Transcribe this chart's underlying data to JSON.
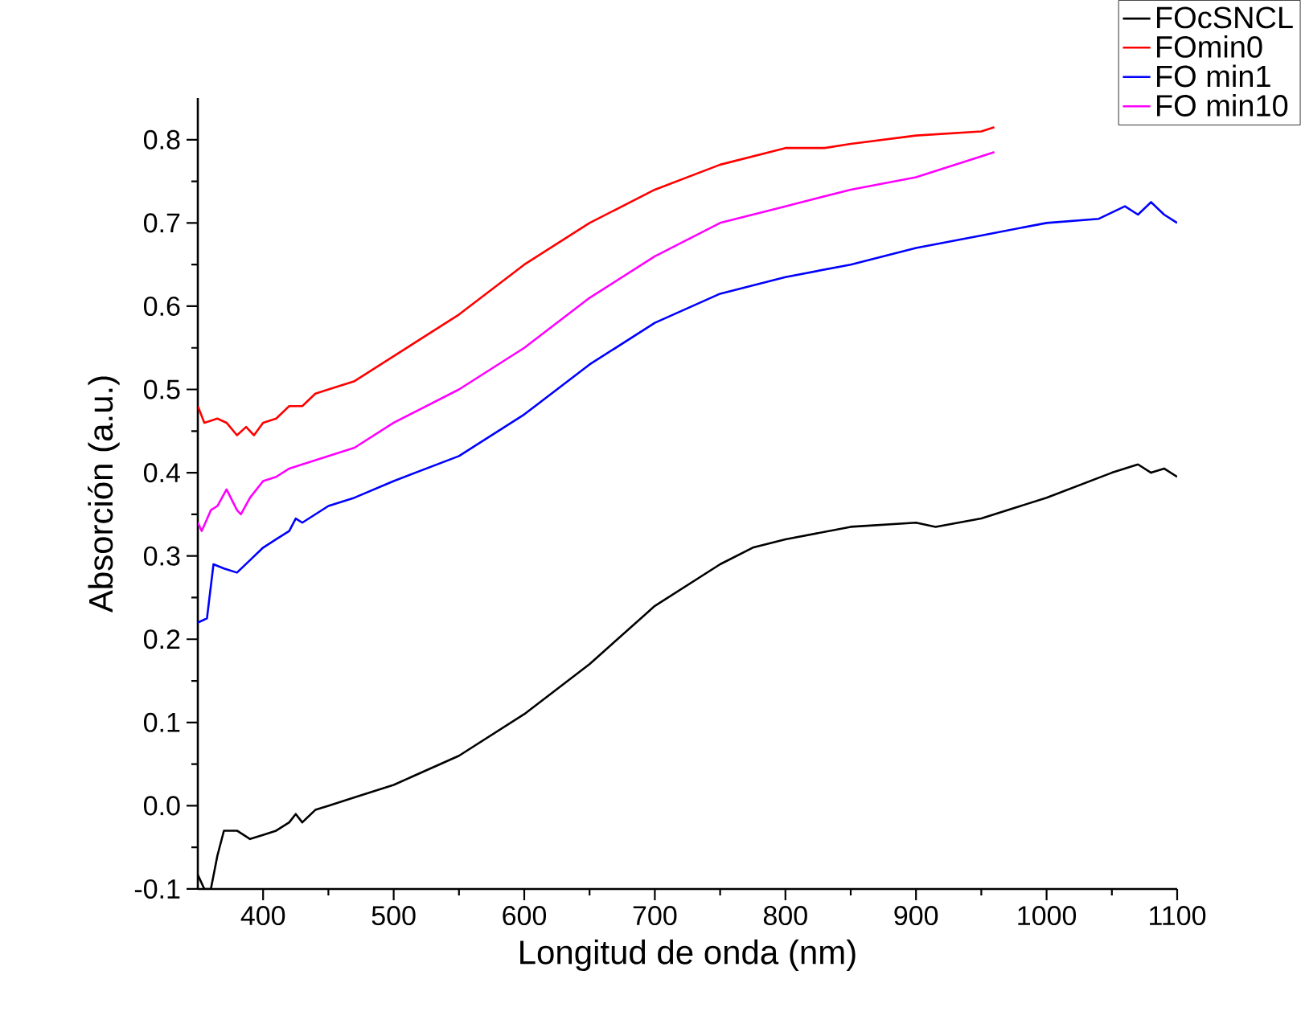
{
  "chart_data": {
    "type": "line",
    "xlabel": "Longitud de onda (nm)",
    "ylabel": "Absorción (a.u.)",
    "xlim": [
      350,
      1100
    ],
    "ylim": [
      -0.1,
      0.85
    ],
    "xticks": [
      400,
      500,
      600,
      700,
      800,
      900,
      1000,
      1100
    ],
    "yticks": [
      -0.1,
      {
        "value": 0,
        "label": "0.0"
      },
      0.1,
      0.2,
      0.3,
      0.4,
      0.5,
      0.6,
      0.7,
      0.8
    ],
    "legend": "top right",
    "grid": false,
    "line_style": "solid",
    "marker": "none",
    "series": [
      {
        "name": "FOcSNCL",
        "color": "#000000",
        "x": [
          350,
          355,
          360,
          365,
          370,
          380,
          390,
          400,
          410,
          420,
          425,
          430,
          440,
          450,
          470,
          500,
          550,
          600,
          650,
          700,
          750,
          775,
          800,
          850,
          900,
          915,
          950,
          1000,
          1050,
          1070,
          1080,
          1090,
          1100
        ],
        "values": [
          -0.083,
          -0.1,
          -0.1,
          -0.06,
          -0.03,
          -0.03,
          -0.04,
          -0.035,
          -0.03,
          -0.02,
          -0.01,
          -0.02,
          -0.005,
          0.0,
          0.01,
          0.025,
          0.06,
          0.11,
          0.17,
          0.24,
          0.29,
          0.31,
          0.32,
          0.335,
          0.34,
          0.335,
          0.345,
          0.37,
          0.4,
          0.41,
          0.4,
          0.405,
          0.395
        ]
      },
      {
        "name": "FOmin0",
        "color": "#ff0000",
        "x": [
          350,
          355,
          365,
          372,
          380,
          387,
          393,
          400,
          410,
          420,
          430,
          440,
          450,
          470,
          500,
          550,
          600,
          650,
          700,
          750,
          800,
          830,
          850,
          900,
          950,
          960
        ],
        "values": [
          0.48,
          0.46,
          0.465,
          0.46,
          0.445,
          0.455,
          0.445,
          0.46,
          0.465,
          0.48,
          0.48,
          0.495,
          0.5,
          0.51,
          0.54,
          0.59,
          0.65,
          0.7,
          0.74,
          0.77,
          0.79,
          0.79,
          0.795,
          0.805,
          0.81,
          0.815
        ]
      },
      {
        "name": "FO min1",
        "color": "#0000ff",
        "x": [
          350,
          357,
          362,
          370,
          380,
          390,
          400,
          410,
          420,
          425,
          430,
          440,
          450,
          470,
          500,
          550,
          600,
          650,
          700,
          750,
          800,
          850,
          900,
          950,
          1000,
          1040,
          1060,
          1070,
          1080,
          1090,
          1100
        ],
        "values": [
          0.22,
          0.225,
          0.29,
          0.285,
          0.28,
          0.295,
          0.31,
          0.32,
          0.33,
          0.345,
          0.34,
          0.35,
          0.36,
          0.37,
          0.39,
          0.42,
          0.47,
          0.53,
          0.58,
          0.615,
          0.635,
          0.65,
          0.67,
          0.685,
          0.7,
          0.705,
          0.72,
          0.71,
          0.725,
          0.71,
          0.7
        ]
      },
      {
        "name": "FO min10",
        "color": "#ff00ff",
        "x": [
          350,
          353,
          360,
          365,
          372,
          380,
          383,
          390,
          400,
          410,
          420,
          430,
          450,
          470,
          500,
          550,
          600,
          650,
          700,
          750,
          800,
          850,
          900,
          950,
          960
        ],
        "values": [
          0.34,
          0.33,
          0.355,
          0.36,
          0.38,
          0.355,
          0.35,
          0.37,
          0.39,
          0.395,
          0.405,
          0.41,
          0.42,
          0.43,
          0.46,
          0.5,
          0.55,
          0.61,
          0.66,
          0.7,
          0.72,
          0.74,
          0.755,
          0.78,
          0.785
        ]
      }
    ]
  }
}
